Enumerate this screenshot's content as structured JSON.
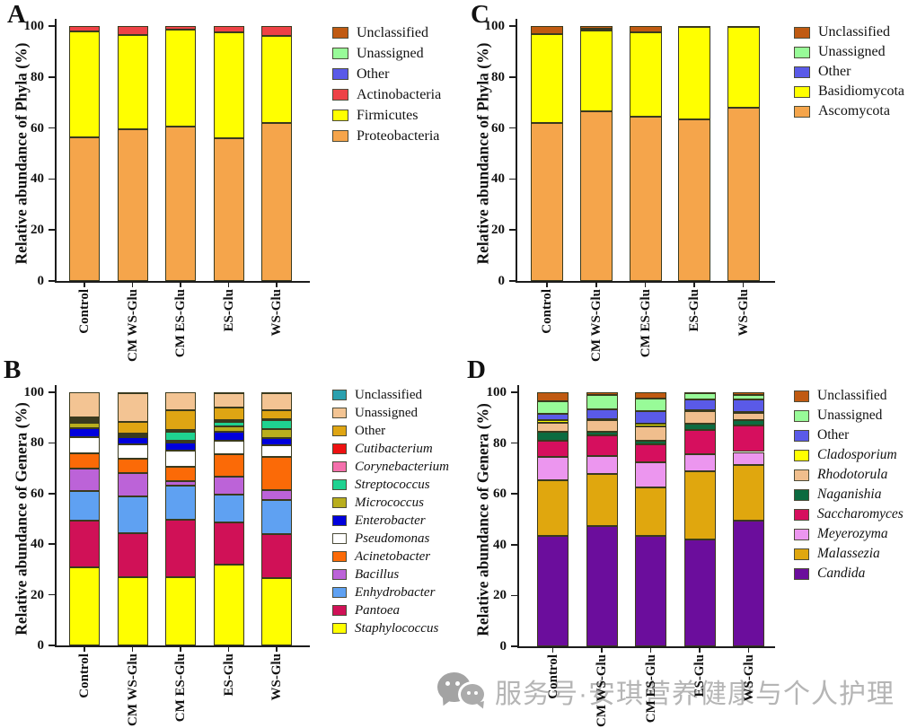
{
  "watermark": {
    "icon": "wechat-bubbles-icon",
    "text": "服务号·安琪营养健康与个人护理",
    "color": "#b5b5b5"
  },
  "chart_data": [
    {
      "panel_label": "A",
      "type": "bar",
      "stacked": true,
      "title": "",
      "xlabel": "",
      "ylabel": "Relative abundance of Phyla (%)",
      "ylim": [
        0,
        100
      ],
      "yticks": [
        0,
        20,
        40,
        60,
        80,
        100
      ],
      "grid": false,
      "legend_position": "right-top",
      "categories": [
        "Control",
        "CM WS-Glu",
        "CM ES-Glu",
        "ES-Glu",
        "WS-Glu"
      ],
      "series": [
        {
          "name": "Proteobacteria",
          "color": "#F5A54B",
          "values": [
            56.5,
            59.5,
            60.5,
            56,
            62
          ]
        },
        {
          "name": "Firmicutes",
          "color": "#FFFF00",
          "values": [
            41.5,
            37,
            38,
            41.5,
            34
          ]
        },
        {
          "name": "Actinobacteria",
          "color": "#EE4246",
          "values": [
            2,
            3.5,
            1.5,
            2.5,
            4
          ]
        },
        {
          "name": "Other",
          "color": "#5A5AE8",
          "values": [
            0,
            0,
            0,
            0,
            0
          ]
        },
        {
          "name": "Unassigned",
          "color": "#98FB98",
          "values": [
            0,
            0,
            0,
            0,
            0
          ]
        },
        {
          "name": "Unclassified",
          "color": "#C05A11",
          "values": [
            0,
            0,
            0,
            0,
            0
          ]
        }
      ],
      "legend": [
        {
          "label": "Unclassified",
          "italic": false
        },
        {
          "label": "Unassigned",
          "italic": false
        },
        {
          "label": "Other",
          "italic": false
        },
        {
          "label": "Actinobacteria",
          "italic": false
        },
        {
          "label": "Firmicutes",
          "italic": false
        },
        {
          "label": "Proteobacteria",
          "italic": false
        }
      ]
    },
    {
      "panel_label": "B",
      "type": "bar",
      "stacked": true,
      "title": "",
      "xlabel": "",
      "ylabel": "Relative abundance of Genera (%)",
      "ylim": [
        0,
        100
      ],
      "yticks": [
        0,
        20,
        40,
        60,
        80,
        100
      ],
      "grid": false,
      "legend_position": "right-top",
      "categories": [
        "Control",
        "CM WS-Glu",
        "CM ES-Glu",
        "ES-Glu",
        "WS-Glu"
      ],
      "series": [
        {
          "name": "Staphylococcus",
          "color": "#FFFF00",
          "values": [
            31,
            27,
            27,
            32,
            26.5
          ]
        },
        {
          "name": "Pantoea",
          "color": "#D01157",
          "values": [
            18.3,
            17.4,
            22.6,
            16.5,
            17.3
          ]
        },
        {
          "name": "Enhydrobacter",
          "color": "#5FA1F2",
          "values": [
            11.6,
            14.4,
            13.5,
            11.1,
            13.5
          ]
        },
        {
          "name": "Bacillus",
          "color": "#BC63D8",
          "values": [
            8.8,
            9.2,
            1.9,
            7,
            4
          ]
        },
        {
          "name": "Acinetobacter",
          "color": "#FB6A07",
          "values": [
            6.3,
            5.8,
            5.5,
            8.9,
            13.2
          ]
        },
        {
          "name": "Pseudomonas",
          "color": "#FFFFFF",
          "values": [
            6.4,
            5.5,
            6.5,
            5.4,
            4.5
          ]
        },
        {
          "name": "Enterobacter",
          "color": "#0000DC",
          "values": [
            3.5,
            3,
            3,
            3.6,
            3
          ]
        },
        {
          "name": "Micrococcus",
          "color": "#B9AE1D",
          "values": [
            2,
            0.5,
            1,
            2,
            3.6
          ]
        },
        {
          "name": "Streptococcus",
          "color": "#1FD290",
          "values": [
            0.7,
            0.4,
            3.5,
            2,
            3.3
          ]
        },
        {
          "name": "Corynebacterium",
          "color": "#F470AC",
          "values": [
            0.4,
            0.3,
            0.3,
            0.3,
            0.3
          ]
        },
        {
          "name": "Cutibacterium",
          "color": "#EE1111",
          "values": [
            0.3,
            0.2,
            0.2,
            0.2,
            0.3
          ]
        },
        {
          "name": "Other",
          "color": "#DFA513",
          "values": [
            0.7,
            4.5,
            8,
            5,
            3.5
          ]
        },
        {
          "name": "Unassigned",
          "color": "#F3C493",
          "values": [
            10,
            11.6,
            7,
            5.8,
            6.8
          ]
        },
        {
          "name": "Unclassified",
          "color": "#2AA0AE",
          "values": [
            0,
            0.2,
            0,
            0.2,
            0.2
          ]
        }
      ],
      "legend": [
        {
          "label": "Unclassified",
          "italic": false
        },
        {
          "label": "Unassigned",
          "italic": false
        },
        {
          "label": "Other",
          "italic": false
        },
        {
          "label": "Cutibacterium",
          "italic": true
        },
        {
          "label": "Corynebacterium",
          "italic": true
        },
        {
          "label": "Streptococcus",
          "italic": true
        },
        {
          "label": "Micrococcus",
          "italic": true
        },
        {
          "label": "Enterobacter",
          "italic": true
        },
        {
          "label": "Pseudomonas",
          "italic": true
        },
        {
          "label": "Acinetobacter",
          "italic": true
        },
        {
          "label": "Bacillus",
          "italic": true
        },
        {
          "label": "Enhydrobacter",
          "italic": true
        },
        {
          "label": "Pantoea",
          "italic": true
        },
        {
          "label": "Staphylococcus",
          "italic": true
        }
      ]
    },
    {
      "panel_label": "C",
      "type": "bar",
      "stacked": true,
      "title": "",
      "xlabel": "",
      "ylabel": "Relative abundance of Phyla (%)",
      "ylim": [
        0,
        100
      ],
      "yticks": [
        0,
        20,
        40,
        60,
        80,
        100
      ],
      "grid": false,
      "legend_position": "right-top",
      "categories": [
        "Control",
        "CM WS-Glu",
        "CM ES-Glu",
        "ES-Glu",
        "WS-Glu"
      ],
      "series": [
        {
          "name": "Ascomycota",
          "color": "#F5A54B",
          "values": [
            62,
            66.5,
            64.5,
            63.5,
            68
          ]
        },
        {
          "name": "Basidiomycota",
          "color": "#FFFF00",
          "values": [
            35,
            31.8,
            33,
            36.3,
            31.8
          ]
        },
        {
          "name": "Other",
          "color": "#5A5AE8",
          "values": [
            0,
            0.7,
            0,
            0,
            0
          ]
        },
        {
          "name": "Unassigned",
          "color": "#98FB98",
          "values": [
            0,
            0,
            0,
            0,
            0
          ]
        },
        {
          "name": "Unclassified",
          "color": "#C05A11",
          "values": [
            3,
            1,
            2.5,
            0.2,
            0.2
          ]
        }
      ],
      "legend": [
        {
          "label": "Unclassified",
          "italic": false
        },
        {
          "label": "Unassigned",
          "italic": false
        },
        {
          "label": "Other",
          "italic": false
        },
        {
          "label": "Basidiomycota",
          "italic": false
        },
        {
          "label": "Ascomycota",
          "italic": false
        }
      ]
    },
    {
      "panel_label": "D",
      "type": "bar",
      "stacked": true,
      "title": "",
      "xlabel": "",
      "ylabel": "Relative abundance of Genera (%)",
      "ylim": [
        0,
        100
      ],
      "yticks": [
        0,
        20,
        40,
        60,
        80,
        100
      ],
      "grid": false,
      "legend_position": "right-top",
      "categories": [
        "Control",
        "CM WS-Glu",
        "CM ES-Glu",
        "ES-Glu",
        "WS-Glu"
      ],
      "series": [
        {
          "name": "Candida",
          "color": "#6B0D9C",
          "values": [
            43.5,
            47.5,
            43.5,
            42,
            49.5
          ]
        },
        {
          "name": "Malassezia",
          "color": "#E0A70E",
          "values": [
            22,
            20.5,
            19,
            27,
            22
          ]
        },
        {
          "name": "Meyerozyma",
          "color": "#EC96EF",
          "values": [
            8.9,
            7,
            10,
            6.5,
            5
          ]
        },
        {
          "name": "Saccharomyces",
          "color": "#D60F5E",
          "values": [
            6.4,
            8,
            7,
            9.5,
            10.5
          ]
        },
        {
          "name": "Naganishia",
          "color": "#0C6B40",
          "values": [
            3.6,
            1.5,
            1.5,
            2.5,
            2
          ]
        },
        {
          "name": "Rhodotorula",
          "color": "#F0BE8D",
          "values": [
            3.5,
            4.5,
            5.5,
            5,
            3
          ]
        },
        {
          "name": "Cladosporium",
          "color": "#FFFF00",
          "values": [
            1.1,
            0.3,
            1,
            0.3,
            0.3
          ]
        },
        {
          "name": "Other",
          "color": "#5A5AE8",
          "values": [
            2.4,
            4,
            5,
            4.5,
            5
          ]
        },
        {
          "name": "Unassigned",
          "color": "#98FB98",
          "values": [
            5.1,
            5.7,
            5,
            2.2,
            1.7
          ]
        },
        {
          "name": "Unclassified",
          "color": "#C05A11",
          "values": [
            3.5,
            1,
            2.5,
            0.5,
            1
          ]
        }
      ],
      "legend": [
        {
          "label": "Unclassified",
          "italic": false
        },
        {
          "label": "Unassigned",
          "italic": false
        },
        {
          "label": "Other",
          "italic": false
        },
        {
          "label": "Cladosporium",
          "italic": true
        },
        {
          "label": "Rhodotorula",
          "italic": true
        },
        {
          "label": "Naganishia",
          "italic": true
        },
        {
          "label": "Saccharomyces",
          "italic": true
        },
        {
          "label": "Meyerozyma",
          "italic": true
        },
        {
          "label": "Malassezia",
          "italic": true
        },
        {
          "label": "Candida",
          "italic": true
        }
      ]
    }
  ]
}
